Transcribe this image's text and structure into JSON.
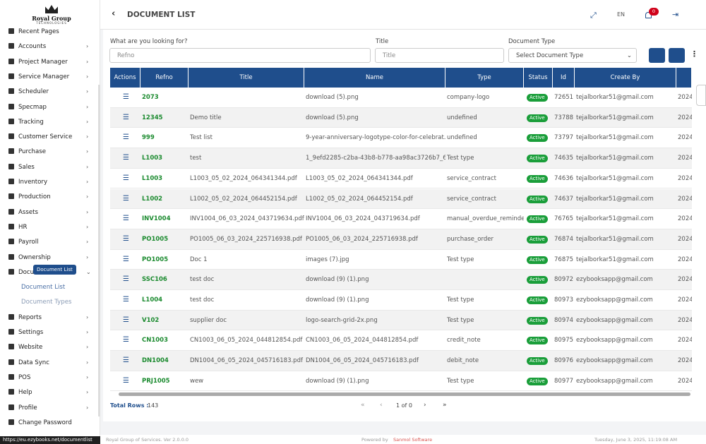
{
  "header": {
    "logo_title": "Royal Group",
    "logo_subtitle": "TECHNOLOGIES",
    "page_title": "DOCUMENT LIST",
    "language": "EN",
    "notification_count": "0"
  },
  "sidebar": {
    "items": [
      {
        "label": "Recent Pages"
      },
      {
        "label": "Accounts"
      },
      {
        "label": "Project Manager"
      },
      {
        "label": "Service Manager"
      },
      {
        "label": "Scheduler"
      },
      {
        "label": "Specmap"
      },
      {
        "label": "Tracking"
      },
      {
        "label": "Customer Service"
      },
      {
        "label": "Purchase"
      },
      {
        "label": "Sales"
      },
      {
        "label": "Inventory"
      },
      {
        "label": "Production"
      },
      {
        "label": "Assets"
      },
      {
        "label": "HR"
      },
      {
        "label": "Payroll"
      },
      {
        "label": "Ownership"
      },
      {
        "label": "Documents",
        "submenu": [
          "Document List",
          "Document Types"
        ]
      },
      {
        "label": "Reports"
      },
      {
        "label": "Settings"
      },
      {
        "label": "Website"
      },
      {
        "label": "Data Sync"
      },
      {
        "label": "POS"
      },
      {
        "label": "Help"
      },
      {
        "label": "Profile"
      },
      {
        "label": "Change Password"
      }
    ],
    "tooltip": "Document List"
  },
  "status_url": "https://eu.ezybooks.net/documentlist",
  "filters": {
    "search_label": "What are you looking for?",
    "search_placeholder": "Refno",
    "title_label": "Title",
    "title_placeholder": "Title",
    "type_label": "Document Type",
    "type_placeholder": "Select Document Type"
  },
  "table": {
    "columns": [
      "Actions",
      "Refno",
      "Title",
      "Name",
      "Type",
      "Status",
      "Id",
      "Create By"
    ],
    "rows": [
      [
        "2073",
        "",
        "download (5).png",
        "company-logo",
        "Active",
        "72651",
        "tejalborkar51@gmail.com",
        "2024"
      ],
      [
        "12345",
        "Demo title",
        "download (5).png",
        "undefined",
        "Active",
        "73788",
        "tejalborkar51@gmail.com",
        "2024"
      ],
      [
        "999",
        "Test list",
        "9-year-anniversary-logotype-color-for-celebrat...",
        "undefined",
        "Active",
        "73797",
        "tejalborkar51@gmail.com",
        "2024"
      ],
      [
        "L1003",
        "test",
        "1_9efd2285-c2ba-43b8-b778-aa98ac3726b7_6...",
        "Test type",
        "Active",
        "74635",
        "tejalborkar51@gmail.com",
        "2024"
      ],
      [
        "L1003",
        "L1003_05_02_2024_064341344.pdf",
        "L1003_05_02_2024_064341344.pdf",
        "service_contract",
        "Active",
        "74636",
        "tejalborkar51@gmail.com",
        "2024"
      ],
      [
        "L1002",
        "L1002_05_02_2024_064452154.pdf",
        "L1002_05_02_2024_064452154.pdf",
        "service_contract",
        "Active",
        "74637",
        "tejalborkar51@gmail.com",
        "2024"
      ],
      [
        "INV1004",
        "INV1004_06_03_2024_043719634.pdf",
        "INV1004_06_03_2024_043719634.pdf",
        "manual_overdue_reminder",
        "Active",
        "76765",
        "tejalborkar51@gmail.com",
        "2024"
      ],
      [
        "PO1005",
        "PO1005_06_03_2024_225716938.pdf",
        "PO1005_06_03_2024_225716938.pdf",
        "purchase_order",
        "Active",
        "76874",
        "tejalborkar51@gmail.com",
        "2024"
      ],
      [
        "PO1005",
        "Doc 1",
        "images (7).jpg",
        "Test type",
        "Active",
        "76875",
        "tejalborkar51@gmail.com",
        "2024"
      ],
      [
        "SSC106",
        "test doc",
        "download (9) (1).png",
        "",
        "Active",
        "80972",
        "ezybooksapp@gmail.com",
        "2024"
      ],
      [
        "L1004",
        "test doc",
        "download (9) (1).png",
        "Test type",
        "Active",
        "80973",
        "ezybooksapp@gmail.com",
        "2024"
      ],
      [
        "V102",
        "supplier doc",
        "logo-search-grid-2x.png",
        "Test type",
        "Active",
        "80974",
        "ezybooksapp@gmail.com",
        "2024"
      ],
      [
        "CN1003",
        "CN1003_06_05_2024_044812854.pdf",
        "CN1003_06_05_2024_044812854.pdf",
        "credit_note",
        "Active",
        "80975",
        "ezybooksapp@gmail.com",
        "2024"
      ],
      [
        "DN1004",
        "DN1004_06_05_2024_045716183.pdf",
        "DN1004_06_05_2024_045716183.pdf",
        "debit_note",
        "Active",
        "80976",
        "ezybooksapp@gmail.com",
        "2024"
      ],
      [
        "PRJ1005",
        "wew",
        "download (9) (1).png",
        "Test type",
        "Active",
        "80977",
        "ezybooksapp@gmail.com",
        "2024"
      ]
    ]
  },
  "footer": {
    "total_label": "Total Rows :",
    "total": "143",
    "page_info": "1 of 0"
  },
  "bottom_bar": {
    "version": "Royal Group of Services. Ver 2.0.0.0",
    "powered_label": "Powered by",
    "powered_name": "Sanmol Software",
    "datetime": "Tuesday, June 3, 2025, 11:19:08 AM"
  }
}
